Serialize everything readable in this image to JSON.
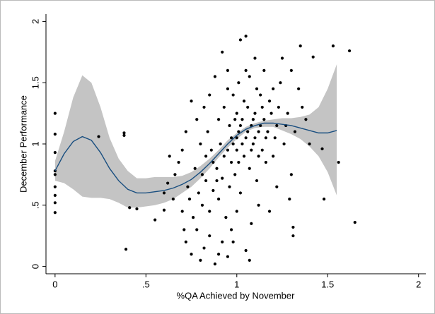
{
  "chart_data": {
    "type": "scatter",
    "x_label": "%QA Achieved by November",
    "y_label": "December Performance",
    "xlim": [
      -0.05,
      2.04
    ],
    "ylim": [
      -0.06,
      2.06
    ],
    "xticks": [
      0,
      {
        "value": 0.5,
        "label": ".5"
      },
      1,
      1.5,
      2
    ],
    "yticks": [
      0,
      {
        "value": 0.5,
        "label": ".5"
      },
      1,
      1.5,
      2
    ],
    "point_color": "#000000",
    "line_color": "#1a4f80",
    "band_color": "#c4c4c4",
    "points": {
      "x": [
        0,
        0,
        0,
        0,
        0,
        0,
        0,
        0,
        0,
        0.38,
        0.38,
        0.24,
        0.39,
        0.41,
        0.45,
        1.65,
        1.53,
        1.62,
        1.42,
        1.56,
        1.48,
        1.47,
        1.35,
        1.31,
        1.31,
        1.07,
        1.05,
        0.55,
        0.6,
        0.6,
        0.62,
        0.72,
        0.75,
        0.78,
        0.8,
        0.82,
        0.85,
        0.88,
        0.9,
        0.92,
        0.95,
        0.97,
        0.7,
        0.74,
        0.76,
        0.79,
        0.81,
        0.83,
        0.85,
        0.87,
        0.89,
        0.9,
        0.92,
        0.93,
        0.94,
        0.96,
        0.97,
        0.98,
        0.99,
        1.0,
        1.01,
        1.02,
        1.03,
        1.04,
        1.05,
        1.06,
        1.07,
        1.08,
        1.09,
        1.1,
        1.11,
        1.12,
        1.13,
        1.14,
        1.15,
        1.16,
        1.18,
        1.2,
        1.22,
        1.24,
        1.26,
        1.28,
        1.3,
        1.32,
        1.34,
        1.38,
        1.4,
        1.25,
        1.15,
        1.05,
        1.02,
        0.95,
        0.92,
        0.88,
        0.85,
        0.82,
        0.78,
        0.75,
        0.72,
        0.7,
        0.68,
        0.66,
        0.65,
        0.63,
        0.8,
        0.84,
        0.86,
        0.9,
        0.93,
        0.96,
        0.98,
        1.0,
        1.01,
        1.03,
        1.04,
        1.06,
        1.07,
        1.08,
        1.09,
        1.1,
        1.11,
        1.12,
        1.13,
        1.14,
        1.16,
        1.17,
        1.19,
        1.21,
        1.23,
        1.27,
        1.29,
        1.22,
        1.18,
        1.12,
        1.08,
        1.0,
        0.98,
        1.0,
        1.01,
        1.02,
        0.99,
        0.97,
        0.95,
        0.91,
        0.89,
        0.87,
        0.83,
        0.81,
        0.77,
        0.73,
        0.71,
        0.95,
        1.05,
        1.1,
        1.2,
        1.3,
        1.36
      ],
      "y": [
        1.25,
        1.08,
        0.93,
        0.78,
        0.75,
        0.65,
        0.58,
        0.52,
        0.44,
        1.09,
        1.07,
        1.06,
        0.14,
        0.48,
        0.47,
        0.36,
        1.8,
        1.76,
        1.71,
        0.85,
        0.55,
        0.96,
        1.8,
        0.32,
        0.25,
        0.05,
        0.13,
        0.38,
        0.46,
        0.6,
        0.68,
        0.2,
        0.1,
        0.3,
        0.05,
        0.15,
        0.25,
        0.02,
        0.1,
        0.2,
        0.08,
        0.3,
        0.45,
        0.55,
        0.4,
        0.6,
        0.5,
        0.7,
        0.45,
        0.62,
        0.8,
        0.55,
        0.72,
        0.9,
        0.4,
        0.65,
        0.85,
        1.0,
        0.75,
        0.95,
        1.1,
        0.6,
        1.2,
        0.9,
        1.05,
        1.3,
        0.8,
        1.15,
        1.0,
        1.25,
        0.7,
        1.1,
        1.4,
        0.95,
        1.2,
        1.05,
        1.35,
        0.9,
        1.15,
        1.5,
        1.0,
        1.25,
        0.75,
        1.1,
        1.45,
        1.2,
        1.0,
        1.7,
        1.6,
        1.88,
        1.85,
        1.6,
        1.75,
        1.55,
        1.4,
        1.3,
        1.2,
        1.35,
        1.1,
        0.95,
        0.85,
        0.75,
        0.55,
        0.9,
        1.0,
        1.1,
        0.95,
        1.2,
        1.3,
        1.15,
        1.4,
        1.25,
        1.5,
        1.0,
        1.35,
        1.1,
        1.55,
        0.95,
        1.2,
        1.05,
        1.45,
        0.9,
        1.15,
        1.3,
        0.85,
        1.1,
        1.25,
        1.05,
        1.3,
        1.15,
        0.55,
        0.65,
        0.45,
        0.5,
        0.35,
        0.45,
        0.2,
        1.05,
        0.85,
        1.15,
        1.2,
        1.05,
        0.95,
        1.0,
        0.7,
        0.85,
        0.9,
        0.75,
        0.8,
        0.65,
        0.3,
        1.45,
        1.6,
        1.7,
        1.45,
        1.6,
        1.3
      ]
    },
    "fit": {
      "x": [
        0,
        0.05,
        0.1,
        0.15,
        0.2,
        0.25,
        0.3,
        0.35,
        0.4,
        0.45,
        0.5,
        0.55,
        0.6,
        0.65,
        0.7,
        0.75,
        0.8,
        0.85,
        0.9,
        0.95,
        1.0,
        1.05,
        1.1,
        1.15,
        1.2,
        1.25,
        1.3,
        1.35,
        1.4,
        1.45,
        1.5,
        1.55
      ],
      "y": [
        0.78,
        0.92,
        1.02,
        1.06,
        1.03,
        0.93,
        0.8,
        0.7,
        0.63,
        0.6,
        0.6,
        0.61,
        0.62,
        0.64,
        0.67,
        0.71,
        0.77,
        0.84,
        0.92,
        1.0,
        1.07,
        1.12,
        1.15,
        1.17,
        1.17,
        1.16,
        1.15,
        1.13,
        1.11,
        1.09,
        1.09,
        1.11
      ],
      "upper": [
        0.86,
        1.1,
        1.38,
        1.56,
        1.5,
        1.3,
        1.05,
        0.88,
        0.78,
        0.72,
        0.72,
        0.73,
        0.73,
        0.73,
        0.74,
        0.77,
        0.82,
        0.88,
        0.95,
        1.03,
        1.09,
        1.14,
        1.17,
        1.19,
        1.2,
        1.21,
        1.21,
        1.22,
        1.24,
        1.3,
        1.45,
        1.65
      ],
      "lower": [
        0.7,
        0.68,
        0.63,
        0.57,
        0.56,
        0.56,
        0.55,
        0.52,
        0.48,
        0.48,
        0.49,
        0.5,
        0.52,
        0.55,
        0.6,
        0.65,
        0.72,
        0.8,
        0.89,
        0.97,
        1.04,
        1.1,
        1.13,
        1.14,
        1.14,
        1.11,
        1.08,
        1.04,
        0.98,
        0.9,
        0.77,
        0.58
      ]
    }
  }
}
